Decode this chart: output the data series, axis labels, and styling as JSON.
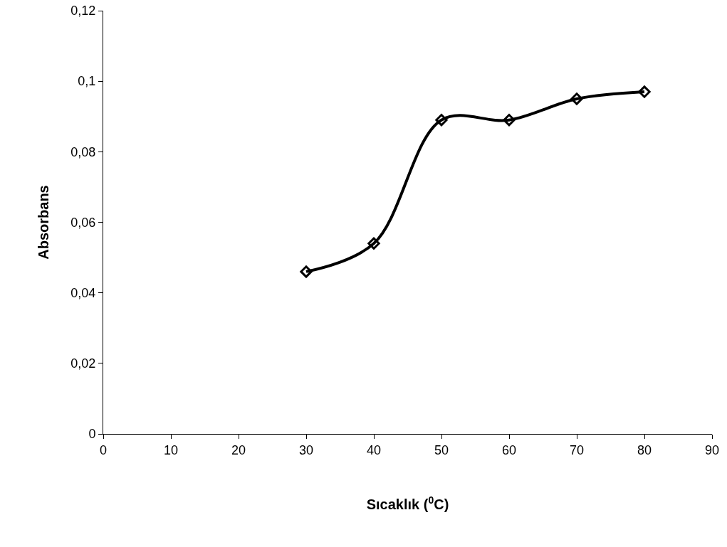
{
  "chart_data": {
    "type": "line",
    "xlabel": "Sıcaklık ($^{0}$C)",
    "ylabel": "Absorbans",
    "x": [
      30,
      40,
      50,
      60,
      70,
      80
    ],
    "series": [
      {
        "color": "#000000",
        "values": [
          0.046,
          0.054,
          0.089,
          0.089,
          0.095,
          0.097
        ]
      }
    ],
    "xlim": [
      0,
      90
    ],
    "xticks": [
      0,
      10,
      20,
      30,
      40,
      50,
      60,
      70,
      80,
      90
    ],
    "ylim": [
      0,
      0.12
    ],
    "yticks": [
      0,
      {
        "value": 0.02,
        "label": "0,02"
      },
      {
        "value": 0.04,
        "label": "0,04"
      },
      {
        "value": 0.06,
        "label": "0,06"
      },
      {
        "value": 0.08,
        "label": "0,08"
      },
      {
        "value": 0.1,
        "label": "0,1"
      },
      {
        "value": 0.12,
        "label": "0,12"
      }
    ],
    "grid": false,
    "marker": "diamond",
    "line_style": "solid"
  }
}
